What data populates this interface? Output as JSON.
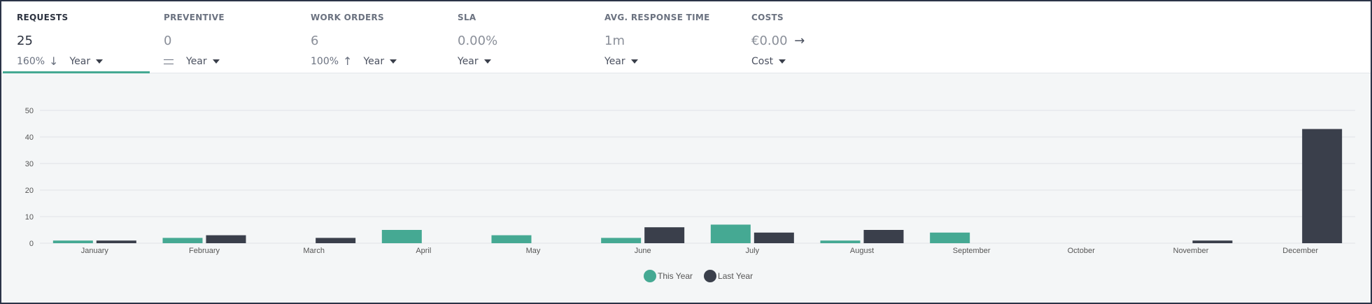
{
  "kpis": [
    {
      "title": "REQUESTS",
      "value": "25",
      "change": "160%",
      "trend": "down",
      "period": "Year",
      "active": true
    },
    {
      "title": "PREVENTIVE",
      "value": "0",
      "change": "",
      "trend": "equal",
      "period": "Year",
      "active": false
    },
    {
      "title": "WORK ORDERS",
      "value": "6",
      "change": "100%",
      "trend": "up",
      "period": "Year",
      "active": false
    },
    {
      "title": "SLA",
      "value": "0.00%",
      "change": "",
      "trend": "none",
      "period": "Year",
      "active": false
    },
    {
      "title": "AVG. RESPONSE TIME",
      "value": "1m",
      "change": "",
      "trend": "none",
      "period": "Year",
      "active": false
    },
    {
      "title": "COSTS",
      "value": "€0.00",
      "change": "",
      "trend": "link",
      "period": "Cost",
      "active": false
    }
  ],
  "colors": {
    "this_year": "#45a993",
    "last_year": "#3a3f4b",
    "accent": "#45a993"
  },
  "chart_data": {
    "type": "bar",
    "categories": [
      "January",
      "February",
      "March",
      "April",
      "May",
      "June",
      "July",
      "August",
      "September",
      "October",
      "November",
      "December"
    ],
    "series": [
      {
        "name": "This Year",
        "values": [
          1,
          2,
          0,
          5,
          3,
          2,
          7,
          1,
          4,
          0,
          0,
          0
        ]
      },
      {
        "name": "Last Year",
        "values": [
          1,
          3,
          2,
          0,
          0,
          6,
          4,
          5,
          0,
          0,
          1,
          43
        ]
      }
    ],
    "yticks": [
      0,
      10,
      20,
      30,
      40,
      50
    ],
    "ylim": [
      0,
      50
    ],
    "title": "",
    "xlabel": "",
    "ylabel": "",
    "grid": true,
    "legend": "bottom-center"
  }
}
